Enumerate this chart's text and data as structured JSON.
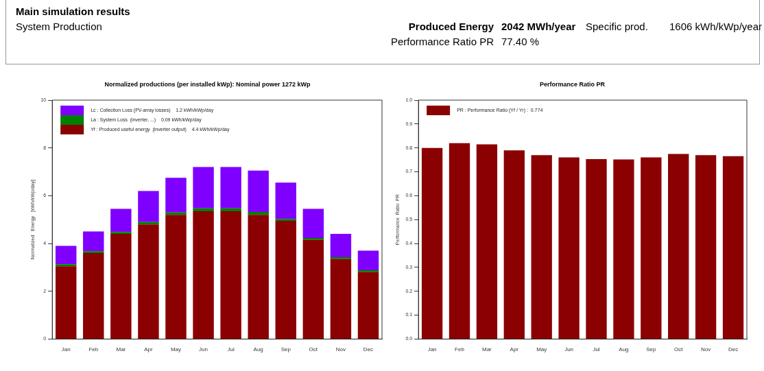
{
  "chart_data": [
    {
      "type": "other",
      "title": "Main simulation results",
      "annotations": [
        "System Production",
        "Produced Energy",
        "2042 MWh/year",
        "Specific prod.",
        "1606 kWh/kWp/year",
        "Performance Ratio PR",
        "77.40 %"
      ]
    },
    {
      "type": "bar",
      "title": "Normalized productions (per installed kWp):   Nominal power 1272 kWp",
      "ylabel": "Normalized   Energy   [kWh/kWp/day]",
      "categories": [
        "Jan",
        "Feb",
        "Mar",
        "Apr",
        "May",
        "Jun",
        "Jul",
        "Aug",
        "Sep",
        "Oct",
        "Nov",
        "Dec"
      ],
      "stacked": true,
      "legend": "top left",
      "ylim": [
        0,
        10
      ],
      "yticks": [
        0,
        2,
        4,
        6,
        8,
        10
      ],
      "series": [
        {
          "name": "Yf : Produced useful energy  (inverter output)    4.4 kWh/kWp/day",
          "color": "#8b0000",
          "values": [
            3.05,
            3.6,
            4.4,
            4.8,
            5.2,
            5.35,
            5.35,
            5.2,
            4.95,
            4.15,
            3.35,
            2.8
          ]
        },
        {
          "name": "La : System Loss  (inverter, ...)    0.09 kWh/kWp/day",
          "color": "#008000",
          "values": [
            0.08,
            0.08,
            0.08,
            0.1,
            0.1,
            0.12,
            0.12,
            0.12,
            0.08,
            0.08,
            0.08,
            0.08
          ]
        },
        {
          "name": "Lc : Collection Loss (PV-array losses)    1.2 kWh/kWp/day",
          "color": "#8000ff",
          "values": [
            0.77,
            0.82,
            0.97,
            1.3,
            1.45,
            1.73,
            1.73,
            1.73,
            1.52,
            1.22,
            0.97,
            0.82
          ]
        }
      ]
    },
    {
      "type": "bar",
      "title": "Performance Ratio PR",
      "ylabel": "Performance  Ratio  PR",
      "categories": [
        "Jan",
        "Feb",
        "Mar",
        "Apr",
        "May",
        "Jun",
        "Jul",
        "Aug",
        "Sep",
        "Oct",
        "Nov",
        "Dec"
      ],
      "legend": "top left",
      "ylim": [
        0,
        1
      ],
      "yticks": [
        {
          "value": 0,
          "label": "0.0"
        },
        {
          "value": 0.1,
          "label": "0.1"
        },
        {
          "value": 0.2,
          "label": "0.2"
        },
        {
          "value": 0.3,
          "label": "0.3"
        },
        {
          "value": 0.4,
          "label": "0.4"
        },
        {
          "value": 0.5,
          "label": "0.5"
        },
        {
          "value": 0.6,
          "label": "0.6"
        },
        {
          "value": 0.7,
          "label": "0.7"
        },
        {
          "value": 0.8,
          "label": "0.8"
        },
        {
          "value": 0.9,
          "label": "0.9"
        },
        {
          "value": 1,
          "label": "1.0"
        }
      ],
      "series": [
        {
          "name": "PR : Performance Ratio (Yf / Yr) :  0.774",
          "color": "#8b0000",
          "values": [
            0.8,
            0.82,
            0.815,
            0.79,
            0.77,
            0.76,
            0.753,
            0.752,
            0.76,
            0.775,
            0.77,
            0.765
          ]
        }
      ]
    }
  ]
}
